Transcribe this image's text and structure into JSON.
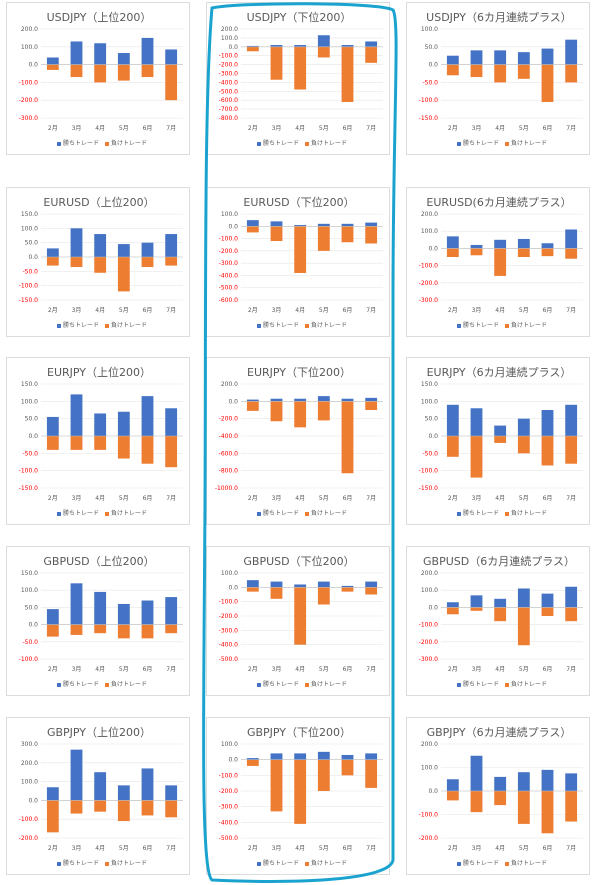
{
  "colors": {
    "win": "#4472C4",
    "loss": "#ED7D31",
    "axis": "#FF0000",
    "highlight": "#1BA3CF"
  },
  "legend": {
    "win": "勝ちトレード",
    "loss": "負けトレード"
  },
  "chart_data": [
    {
      "type": "bar",
      "title": "USDJPY（上位200）",
      "categories": [
        "2月",
        "3月",
        "4月",
        "5月",
        "6月",
        "7月"
      ],
      "ylim": [
        -300,
        200
      ],
      "yticks": [
        "200.0",
        "100.0",
        "0.0",
        "-100.0",
        "-200.0",
        "-300.0"
      ],
      "series": [
        {
          "name": "勝ちトレード",
          "values": [
            40,
            130,
            120,
            65,
            150,
            85
          ]
        },
        {
          "name": "負けトレード",
          "values": [
            -30,
            -70,
            -100,
            -90,
            -70,
            -200
          ]
        }
      ]
    },
    {
      "type": "bar",
      "title": "USDJPY（下位200）",
      "categories": [
        "2月",
        "3月",
        "4月",
        "5月",
        "6月",
        "7月"
      ],
      "ylim": [
        -800,
        200
      ],
      "yticks": [
        "200.0",
        "100.0",
        "0.0",
        "-100.0",
        "-200.0",
        "-300.0",
        "-400.0",
        "-500.0",
        "-600.0",
        "-700.0",
        "-800.0"
      ],
      "series": [
        {
          "name": "勝ちトレード",
          "values": [
            10,
            20,
            20,
            130,
            20,
            60
          ]
        },
        {
          "name": "負けトレード",
          "values": [
            -50,
            -370,
            -480,
            -120,
            -620,
            -180
          ]
        }
      ]
    },
    {
      "type": "bar",
      "title": "USDJPY（6カ月連続プラス）",
      "categories": [
        "2月",
        "3月",
        "4月",
        "5月",
        "6月",
        "7月"
      ],
      "ylim": [
        -150,
        100
      ],
      "yticks": [
        "100.0",
        "50.0",
        "0.0",
        "-50.0",
        "-100.0",
        "-150.0"
      ],
      "series": [
        {
          "name": "勝ちトレード",
          "values": [
            25,
            40,
            40,
            35,
            45,
            70
          ]
        },
        {
          "name": "負けトレード",
          "values": [
            -30,
            -35,
            -50,
            -40,
            -105,
            -50
          ]
        }
      ]
    },
    {
      "type": "bar",
      "title": "EURUSD（上位200）",
      "categories": [
        "2月",
        "3月",
        "4月",
        "5月",
        "6月",
        "7月"
      ],
      "ylim": [
        -150,
        150
      ],
      "yticks": [
        "150.0",
        "100.0",
        "50.0",
        "0.0",
        "-50.0",
        "-100.0",
        "-150.0"
      ],
      "series": [
        {
          "name": "勝ちトレード",
          "values": [
            30,
            100,
            80,
            45,
            50,
            80
          ]
        },
        {
          "name": "負けトレード",
          "values": [
            -30,
            -35,
            -55,
            -120,
            -35,
            -30
          ]
        }
      ]
    },
    {
      "type": "bar",
      "title": "EURUSD（下位200）",
      "categories": [
        "2月",
        "3月",
        "4月",
        "5月",
        "6月",
        "7月"
      ],
      "ylim": [
        -600,
        100
      ],
      "yticks": [
        "100.0",
        "0.0",
        "-100.0",
        "-200.0",
        "-300.0",
        "-400.0",
        "-500.0",
        "-600.0"
      ],
      "series": [
        {
          "name": "勝ちトレード",
          "values": [
            50,
            40,
            10,
            20,
            20,
            30
          ]
        },
        {
          "name": "負けトレード",
          "values": [
            -50,
            -120,
            -380,
            -200,
            -130,
            -140
          ]
        }
      ]
    },
    {
      "type": "bar",
      "title": "EURUSD(6カ月連続プラス）",
      "categories": [
        "2月",
        "3月",
        "4月",
        "5月",
        "6月",
        "7月"
      ],
      "ylim": [
        -300,
        200
      ],
      "yticks": [
        "200.0",
        "100.0",
        "0.0",
        "-100.0",
        "-200.0",
        "-300.0"
      ],
      "series": [
        {
          "name": "勝ちトレード",
          "values": [
            70,
            20,
            50,
            55,
            30,
            110
          ]
        },
        {
          "name": "負けトレード",
          "values": [
            -50,
            -40,
            -160,
            -50,
            -45,
            -60
          ]
        }
      ]
    },
    {
      "type": "bar",
      "title": "EURJPY（上位200）",
      "categories": [
        "2月",
        "3月",
        "4月",
        "5月",
        "6月",
        "7月"
      ],
      "ylim": [
        -150,
        150
      ],
      "yticks": [
        "150.0",
        "100.0",
        "50.0",
        "0.0",
        "-50.0",
        "-100.0",
        "-150.0"
      ],
      "series": [
        {
          "name": "勝ちトレード",
          "values": [
            55,
            120,
            65,
            70,
            115,
            80
          ]
        },
        {
          "name": "負けトレード",
          "values": [
            -40,
            -40,
            -40,
            -65,
            -80,
            -90
          ]
        }
      ]
    },
    {
      "type": "bar",
      "title": "EURJPY（下位200）",
      "categories": [
        "2月",
        "3月",
        "4月",
        "5月",
        "6月",
        "7月"
      ],
      "ylim": [
        -1000,
        200
      ],
      "yticks": [
        "200.0",
        "0.0",
        "-200.0",
        "-400.0",
        "-600.0",
        "-800.0",
        "-1000.0"
      ],
      "series": [
        {
          "name": "勝ちトレード",
          "values": [
            20,
            30,
            30,
            60,
            30,
            40
          ]
        },
        {
          "name": "負けトレード",
          "values": [
            -110,
            -230,
            -300,
            -220,
            -830,
            -100
          ]
        }
      ]
    },
    {
      "type": "bar",
      "title": "EURJPY（6カ月連続プラス）",
      "categories": [
        "2月",
        "3月",
        "4月",
        "5月",
        "6月",
        "7月"
      ],
      "ylim": [
        -150,
        150
      ],
      "yticks": [
        "150.0",
        "100.0",
        "50.0",
        "0.0",
        "-50.0",
        "-100.0",
        "-150.0"
      ],
      "series": [
        {
          "name": "勝ちトレード",
          "values": [
            90,
            80,
            30,
            50,
            75,
            90
          ]
        },
        {
          "name": "負けトレード",
          "values": [
            -60,
            -120,
            -20,
            -50,
            -85,
            -80
          ]
        }
      ]
    },
    {
      "type": "bar",
      "title": "GBPUSD（上位200）",
      "categories": [
        "2月",
        "3月",
        "4月",
        "5月",
        "6月",
        "7月"
      ],
      "ylim": [
        -100,
        150
      ],
      "yticks": [
        "150.0",
        "100.0",
        "50.0",
        "0.0",
        "-50.0",
        "-100.0"
      ],
      "series": [
        {
          "name": "勝ちトレード",
          "values": [
            45,
            120,
            95,
            60,
            70,
            80
          ]
        },
        {
          "name": "負けトレード",
          "values": [
            -35,
            -30,
            -25,
            -40,
            -40,
            -25
          ]
        }
      ]
    },
    {
      "type": "bar",
      "title": "GBPUSD（下位200）",
      "categories": [
        "2月",
        "3月",
        "4月",
        "5月",
        "6月",
        "7月"
      ],
      "ylim": [
        -500,
        100
      ],
      "yticks": [
        "100.0",
        "0.0",
        "-100.0",
        "-200.0",
        "-300.0",
        "-400.0",
        "-500.0"
      ],
      "series": [
        {
          "name": "勝ちトレード",
          "values": [
            50,
            40,
            20,
            40,
            10,
            40
          ]
        },
        {
          "name": "負けトレード",
          "values": [
            -30,
            -80,
            -400,
            -120,
            -30,
            -50
          ]
        }
      ]
    },
    {
      "type": "bar",
      "title": "GBPUSD（6カ月連続プラス）",
      "categories": [
        "2月",
        "3月",
        "4月",
        "5月",
        "6月",
        "7月"
      ],
      "ylim": [
        -300,
        200
      ],
      "yticks": [
        "200.0",
        "100.0",
        "0.0",
        "-100.0",
        "-200.0",
        "-300.0"
      ],
      "series": [
        {
          "name": "勝ちトレード",
          "values": [
            30,
            70,
            50,
            110,
            80,
            120
          ]
        },
        {
          "name": "負けトレード",
          "values": [
            -40,
            -20,
            -80,
            -220,
            -50,
            -80
          ]
        }
      ]
    },
    {
      "type": "bar",
      "title": "GBPJPY（上位200）",
      "categories": [
        "2月",
        "3月",
        "4月",
        "5月",
        "6月",
        "7月"
      ],
      "ylim": [
        -200,
        300
      ],
      "yticks": [
        "300.0",
        "200.0",
        "100.0",
        "0.0",
        "-100.0",
        "-200.0"
      ],
      "series": [
        {
          "name": "勝ちトレード",
          "values": [
            70,
            270,
            150,
            80,
            170,
            80
          ]
        },
        {
          "name": "負けトレード",
          "values": [
            -170,
            -70,
            -60,
            -110,
            -80,
            -90
          ]
        }
      ]
    },
    {
      "type": "bar",
      "title": "GBPJPY（下位200）",
      "categories": [
        "2月",
        "3月",
        "4月",
        "5月",
        "6月",
        "7月"
      ],
      "ylim": [
        -500,
        100
      ],
      "yticks": [
        "100.0",
        "0.0",
        "-100.0",
        "-200.0",
        "-300.0",
        "-400.0",
        "-500.0"
      ],
      "series": [
        {
          "name": "勝ちトレード",
          "values": [
            10,
            40,
            40,
            50,
            30,
            40
          ]
        },
        {
          "name": "負けトレード",
          "values": [
            -40,
            -330,
            -410,
            -200,
            -100,
            -180
          ]
        }
      ]
    },
    {
      "type": "bar",
      "title": "GBPJPY（6カ月連続プラス）",
      "categories": [
        "2月",
        "3月",
        "4月",
        "5月",
        "6月",
        "7月"
      ],
      "ylim": [
        -200,
        200
      ],
      "yticks": [
        "200.0",
        "100.0",
        "0.0",
        "-100.0",
        "-200.0"
      ],
      "series": [
        {
          "name": "勝ちトレード",
          "values": [
            50,
            150,
            60,
            80,
            90,
            75
          ]
        },
        {
          "name": "負けトレード",
          "values": [
            -40,
            -90,
            -60,
            -140,
            -180,
            -130
          ]
        }
      ]
    }
  ]
}
